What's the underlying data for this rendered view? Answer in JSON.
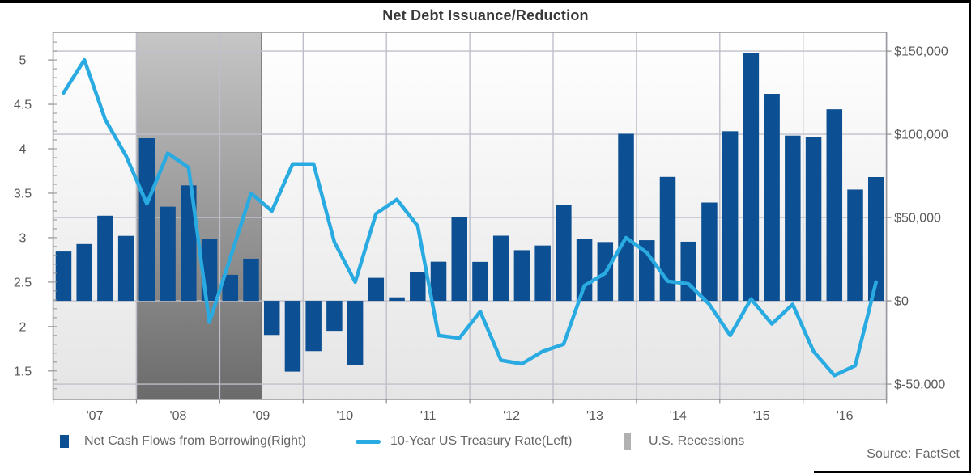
{
  "window": {
    "title": "Net Debt Issuance/Reduction",
    "source": "Source: FactSet"
  },
  "legend": {
    "items": [
      {
        "label": "Net Cash Flows from Borrowing(Right)",
        "swatch": "bar-swatch",
        "color": "#0c4f92"
      },
      {
        "label": "10-Year US Treasury Rate(Left)",
        "swatch": "line-swatch",
        "color": "#29abe2"
      },
      {
        "label": "U.S. Recessions",
        "swatch": "band-swatch",
        "color": "#b1b1b1"
      }
    ]
  },
  "chart_data": {
    "type": "bar",
    "subtype": "bar+line dual-axis combo, quarterly",
    "title": "Net Debt Issuance/Reduction",
    "x_tick_labels": [
      "'07",
      "'08",
      "'09",
      "'10",
      "'11",
      "'12",
      "'13",
      "'14",
      "'15",
      "'16"
    ],
    "quarters": [
      "2007Q1",
      "2007Q2",
      "2007Q3",
      "2007Q4",
      "2008Q1",
      "2008Q2",
      "2008Q3",
      "2008Q4",
      "2009Q1",
      "2009Q2",
      "2009Q3",
      "2009Q4",
      "2010Q1",
      "2010Q2",
      "2010Q3",
      "2010Q4",
      "2011Q1",
      "2011Q2",
      "2011Q3",
      "2011Q4",
      "2012Q1",
      "2012Q2",
      "2012Q3",
      "2012Q4",
      "2013Q1",
      "2013Q2",
      "2013Q3",
      "2013Q4",
      "2014Q1",
      "2014Q2",
      "2014Q3",
      "2014Q4",
      "2015Q1",
      "2015Q2",
      "2015Q3",
      "2015Q4",
      "2016Q1",
      "2016Q2",
      "2016Q3",
      "2016Q4"
    ],
    "series": [
      {
        "name": "Net Cash Flows from Borrowing(Right)",
        "type": "bar",
        "axis": "right",
        "color": "#0c4f92",
        "values": [
          29600,
          34100,
          51100,
          39000,
          97600,
          56500,
          69300,
          37400,
          15600,
          25300,
          -20500,
          -42500,
          -30200,
          -18000,
          -38500,
          13800,
          2100,
          17200,
          23500,
          50500,
          23400,
          39100,
          30400,
          33200,
          57700,
          37400,
          35300,
          100300,
          36400,
          74400,
          35500,
          59000,
          101800,
          148800,
          124300,
          99200,
          98500,
          115000,
          66800,
          74300
        ]
      },
      {
        "name": "10-Year US Treasury Rate(Left)",
        "type": "line",
        "axis": "left",
        "color": "#29abe2",
        "values": [
          4.63,
          5.0,
          4.33,
          3.92,
          3.38,
          3.95,
          3.79,
          2.05,
          2.77,
          3.5,
          3.3,
          3.83,
          3.83,
          2.95,
          2.5,
          3.27,
          3.43,
          3.13,
          1.9,
          1.87,
          2.17,
          1.62,
          1.58,
          1.72,
          1.8,
          2.46,
          2.6,
          3.0,
          2.83,
          2.51,
          2.48,
          2.25,
          1.9,
          2.31,
          2.03,
          2.25,
          1.72,
          1.45,
          1.56,
          2.5
        ]
      }
    ],
    "left_axis": {
      "ticks": [
        5,
        4.5,
        4,
        3.5,
        3,
        2.5,
        2,
        1.5
      ],
      "range": [
        1.18,
        5.31
      ]
    },
    "right_axis": {
      "tick_labels": [
        "$150,000",
        "$100,000",
        "$50,000",
        "$0",
        "$-50,000"
      ],
      "tick_values": [
        150000,
        100000,
        50000,
        0,
        -50000
      ],
      "range": [
        -59200,
        161200
      ]
    },
    "recessions": [
      {
        "label": "U.S. Recessions",
        "start_year": 2008.0,
        "end_year": 2009.5
      }
    ],
    "x_range_years": [
      2007,
      2017
    ],
    "grid": true,
    "legend_position": "bottom",
    "colors": {
      "bar": "#0c4f92",
      "line": "#29abe2",
      "band_top": "#c6c6c6",
      "band_bottom": "#6b6b6b",
      "gridline": "#bfbfca",
      "plot_border": "#9a9aa0",
      "axis_text": "#595959"
    }
  }
}
